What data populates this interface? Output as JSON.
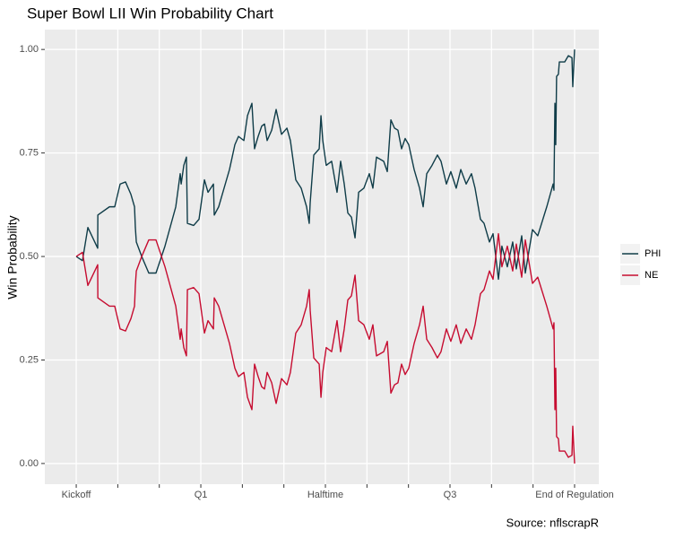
{
  "chart_data": {
    "type": "line",
    "title": "Super Bowl LII Win Probability Chart",
    "y_label": "Win Probability",
    "source": "Source: nflscrapR",
    "x": [
      0,
      45,
      84,
      155,
      156,
      240,
      278,
      317,
      356,
      395,
      421,
      427,
      434,
      473,
      524,
      576,
      641,
      719,
      751,
      758,
      777,
      796,
      803,
      848,
      887,
      926,
      952,
      991,
      997,
      1029,
      1068,
      1107,
      1146,
      1172,
      1211,
      1237,
      1269,
      1288,
      1314,
      1340,
      1360,
      1379,
      1412,
      1444,
      1483,
      1522,
      1547,
      1586,
      1625,
      1664,
      1683,
      1690,
      1716,
      1755,
      1768,
      1781,
      1806,
      1845,
      1884,
      1910,
      1936,
      1962,
      1988,
      2014,
      2040,
      2078,
      2117,
      2143,
      2169,
      2221,
      2247,
      2273,
      2299,
      2324,
      2350,
      2376,
      2402,
      2441,
      2480,
      2506,
      2532,
      2570,
      2609,
      2635,
      2674,
      2706,
      2745,
      2778,
      2817,
      2855,
      2881,
      2920,
      2946,
      2985,
      3011,
      3050,
      3075,
      3114,
      3153,
      3179,
      3218,
      3244,
      3296,
      3334,
      3399,
      3445,
      3451,
      3458,
      3464,
      3470,
      3483,
      3490,
      3529,
      3555,
      3581,
      3587,
      3600
    ],
    "series": [
      {
        "name": "PHI",
        "color": "#0f3c48",
        "values": [
          0.5,
          0.49,
          0.57,
          0.52,
          0.6,
          0.62,
          0.62,
          0.675,
          0.68,
          0.65,
          0.62,
          0.57,
          0.535,
          0.5,
          0.46,
          0.46,
          0.525,
          0.62,
          0.7,
          0.675,
          0.72,
          0.74,
          0.58,
          0.575,
          0.59,
          0.685,
          0.655,
          0.675,
          0.6,
          0.62,
          0.665,
          0.71,
          0.77,
          0.79,
          0.78,
          0.84,
          0.87,
          0.76,
          0.79,
          0.815,
          0.82,
          0.78,
          0.805,
          0.855,
          0.795,
          0.81,
          0.78,
          0.685,
          0.665,
          0.62,
          0.58,
          0.63,
          0.745,
          0.76,
          0.84,
          0.78,
          0.72,
          0.73,
          0.655,
          0.73,
          0.675,
          0.605,
          0.595,
          0.545,
          0.655,
          0.665,
          0.7,
          0.665,
          0.74,
          0.73,
          0.705,
          0.83,
          0.81,
          0.805,
          0.76,
          0.785,
          0.77,
          0.71,
          0.665,
          0.62,
          0.7,
          0.72,
          0.745,
          0.73,
          0.675,
          0.705,
          0.665,
          0.71,
          0.675,
          0.7,
          0.665,
          0.59,
          0.58,
          0.535,
          0.555,
          0.445,
          0.525,
          0.475,
          0.535,
          0.47,
          0.55,
          0.46,
          0.565,
          0.55,
          0.62,
          0.675,
          0.66,
          0.87,
          0.77,
          0.935,
          0.94,
          0.97,
          0.97,
          0.985,
          0.98,
          0.91,
          1.0
        ]
      },
      {
        "name": "NE",
        "color": "#c60c30",
        "values": [
          0.5,
          0.51,
          0.43,
          0.48,
          0.4,
          0.38,
          0.38,
          0.325,
          0.32,
          0.35,
          0.38,
          0.43,
          0.465,
          0.5,
          0.54,
          0.54,
          0.475,
          0.38,
          0.3,
          0.325,
          0.28,
          0.26,
          0.42,
          0.425,
          0.41,
          0.315,
          0.345,
          0.325,
          0.4,
          0.38,
          0.335,
          0.29,
          0.23,
          0.21,
          0.22,
          0.16,
          0.13,
          0.24,
          0.21,
          0.185,
          0.18,
          0.22,
          0.195,
          0.145,
          0.205,
          0.19,
          0.22,
          0.315,
          0.335,
          0.38,
          0.42,
          0.37,
          0.255,
          0.24,
          0.16,
          0.22,
          0.28,
          0.27,
          0.345,
          0.27,
          0.325,
          0.395,
          0.405,
          0.455,
          0.345,
          0.335,
          0.3,
          0.335,
          0.26,
          0.27,
          0.295,
          0.17,
          0.19,
          0.195,
          0.24,
          0.215,
          0.23,
          0.29,
          0.335,
          0.38,
          0.3,
          0.28,
          0.255,
          0.27,
          0.325,
          0.295,
          0.335,
          0.29,
          0.325,
          0.3,
          0.335,
          0.41,
          0.42,
          0.465,
          0.445,
          0.555,
          0.475,
          0.525,
          0.465,
          0.53,
          0.45,
          0.54,
          0.435,
          0.45,
          0.38,
          0.325,
          0.34,
          0.13,
          0.23,
          0.065,
          0.06,
          0.03,
          0.03,
          0.015,
          0.02,
          0.09,
          0.0
        ]
      }
    ],
    "xlim": [
      -227,
      3775
    ],
    "xticks": [
      {
        "value": 0,
        "label": "Kickoff"
      },
      {
        "value": 300,
        "label": null
      },
      {
        "value": 600,
        "label": null
      },
      {
        "value": 900,
        "label": "Q1"
      },
      {
        "value": 1200,
        "label": null
      },
      {
        "value": 1500,
        "label": null
      },
      {
        "value": 1800,
        "label": "Halftime"
      },
      {
        "value": 2100,
        "label": null
      },
      {
        "value": 2400,
        "label": null
      },
      {
        "value": 2700,
        "label": "Q3"
      },
      {
        "value": 3000,
        "label": null
      },
      {
        "value": 3300,
        "label": null
      },
      {
        "value": 3600,
        "label": "End of Regulation"
      }
    ],
    "ylim": [
      -0.05,
      1.048
    ],
    "yticks": [
      {
        "value": 0,
        "label": "0.00"
      },
      {
        "value": 0.25,
        "label": "0.25"
      },
      {
        "value": 0.5,
        "label": "0.50"
      },
      {
        "value": 0.75,
        "label": "0.75"
      },
      {
        "value": 1,
        "label": "1.00"
      }
    ],
    "grid": true,
    "legend": "right"
  }
}
